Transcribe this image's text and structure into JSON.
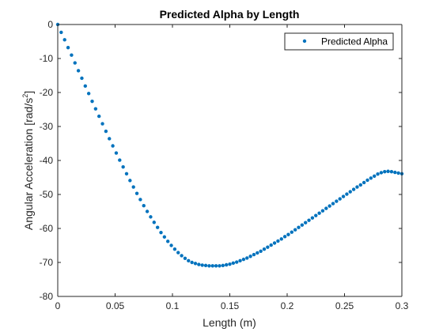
{
  "chart_data": {
    "type": "scatter",
    "title": "Predicted Alpha by Length",
    "xlabel": "Length (m)",
    "ylabel_main": "Angular Acceleration [rad/s",
    "ylabel_sup": "2",
    "ylabel_close": "]",
    "xlim": [
      0,
      0.3
    ],
    "ylim": [
      -80,
      0
    ],
    "xticks": [
      0,
      0.05,
      0.1,
      0.15,
      0.2,
      0.25,
      0.3
    ],
    "xtick_labels": [
      "0",
      "0.05",
      "0.1",
      "0.15",
      "0.2",
      "0.25",
      "0.3"
    ],
    "yticks": [
      0,
      -10,
      -20,
      -30,
      -40,
      -50,
      -60,
      -70,
      -80
    ],
    "ytick_labels": [
      "0",
      "-10",
      "-20",
      "-30",
      "-40",
      "-50",
      "-60",
      "-70",
      "-80"
    ],
    "grid": false,
    "legend_position": "top-right",
    "series": [
      {
        "name": "Predicted Alpha",
        "color": "#0072BD",
        "x": [
          0,
          0.003,
          0.006,
          0.009,
          0.012,
          0.015,
          0.018,
          0.021,
          0.024,
          0.027,
          0.03,
          0.033,
          0.036,
          0.039,
          0.042,
          0.045,
          0.048,
          0.051,
          0.054,
          0.057,
          0.06,
          0.063,
          0.066,
          0.069,
          0.072,
          0.075,
          0.078,
          0.081,
          0.084,
          0.087,
          0.09,
          0.093,
          0.096,
          0.099,
          0.102,
          0.105,
          0.108,
          0.111,
          0.114,
          0.117,
          0.12,
          0.123,
          0.126,
          0.129,
          0.132,
          0.135,
          0.138,
          0.141,
          0.144,
          0.147,
          0.15,
          0.153,
          0.156,
          0.159,
          0.162,
          0.165,
          0.168,
          0.171,
          0.174,
          0.177,
          0.18,
          0.183,
          0.186,
          0.189,
          0.192,
          0.195,
          0.198,
          0.201,
          0.204,
          0.207,
          0.21,
          0.213,
          0.216,
          0.219,
          0.222,
          0.225,
          0.228,
          0.231,
          0.234,
          0.237,
          0.24,
          0.243,
          0.246,
          0.249,
          0.252,
          0.255,
          0.258,
          0.261,
          0.264,
          0.267,
          0.27,
          0.273,
          0.276,
          0.279,
          0.282,
          0.285,
          0.288,
          0.291,
          0.294,
          0.297,
          0.3
        ],
        "y": [
          0,
          -2.3,
          -4.5,
          -6.8,
          -9,
          -11.3,
          -13.6,
          -15.8,
          -18.1,
          -20.3,
          -22.6,
          -24.8,
          -27,
          -29.2,
          -31.4,
          -33.6,
          -35.7,
          -37.8,
          -39.9,
          -41.9,
          -43.9,
          -45.9,
          -47.8,
          -49.7,
          -51.5,
          -53.3,
          -55,
          -56.6,
          -58.2,
          -59.7,
          -61.2,
          -62.5,
          -63.8,
          -65,
          -66.1,
          -67.1,
          -68,
          -68.8,
          -69.5,
          -70,
          -70.3,
          -70.6,
          -70.8,
          -70.9,
          -71,
          -71,
          -71,
          -71,
          -70.9,
          -70.7,
          -70.5,
          -70.2,
          -69.9,
          -69.5,
          -69.1,
          -68.7,
          -68.2,
          -67.7,
          -67.2,
          -66.7,
          -66.1,
          -65.5,
          -64.9,
          -64.3,
          -63.7,
          -63.1,
          -62.4,
          -61.8,
          -61.1,
          -60.4,
          -59.7,
          -59,
          -58.3,
          -57.6,
          -56.9,
          -56.2,
          -55.5,
          -54.8,
          -54.1,
          -53.4,
          -52.7,
          -52,
          -51.3,
          -50.6,
          -49.9,
          -49.2,
          -48.5,
          -47.8,
          -47.2,
          -46.5,
          -45.8,
          -45.2,
          -44.6,
          -44,
          -43.6,
          -43.3,
          -43.2,
          -43.3,
          -43.5,
          -43.7,
          -43.9
        ]
      }
    ]
  }
}
